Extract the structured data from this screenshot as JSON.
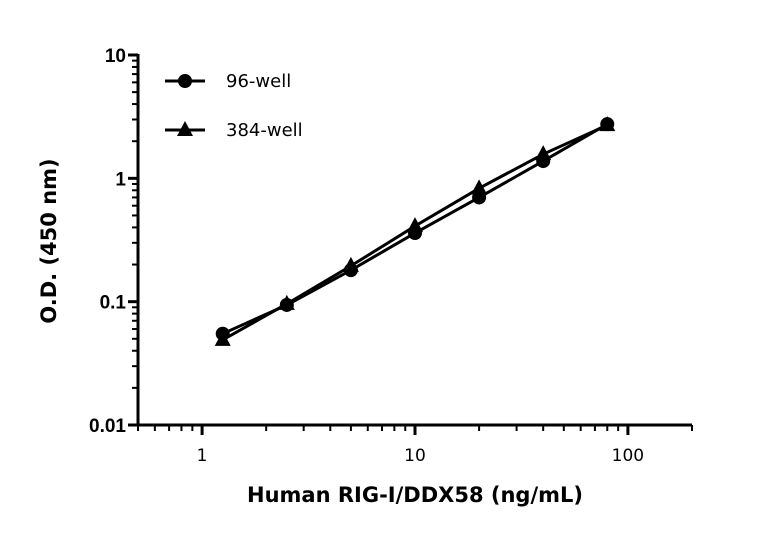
{
  "chart_data": {
    "type": "line",
    "title": "",
    "xlabel": "Human RIG-I/DDX58 (ng/mL)",
    "ylabel": "O.D. (450 nm)",
    "xscale": "log",
    "yscale": "log",
    "xlim": [
      0.5,
      200
    ],
    "ylim": [
      0.01,
      10
    ],
    "xticks": [
      {
        "value": 1,
        "label": "1"
      },
      {
        "value": 10,
        "label": "10"
      },
      {
        "value": 100,
        "label": "100"
      }
    ],
    "yticks": [
      {
        "value": 0.01,
        "label": "0.01"
      },
      {
        "value": 0.1,
        "label": "0.1"
      },
      {
        "value": 1,
        "label": "1"
      },
      {
        "value": 10,
        "label": "10"
      }
    ],
    "grid": false,
    "legend_position": "top-left",
    "x": [
      1.25,
      2.5,
      5,
      10,
      20,
      40,
      80
    ],
    "series": [
      {
        "name": "96-well",
        "marker": "circle",
        "color": "#000000",
        "values": [
          0.055,
          0.094,
          0.18,
          0.36,
          0.7,
          1.38,
          2.75
        ]
      },
      {
        "name": "384-well",
        "marker": "triangle",
        "color": "#000000",
        "values": [
          0.049,
          0.096,
          0.195,
          0.41,
          0.83,
          1.57,
          2.7
        ]
      }
    ]
  }
}
